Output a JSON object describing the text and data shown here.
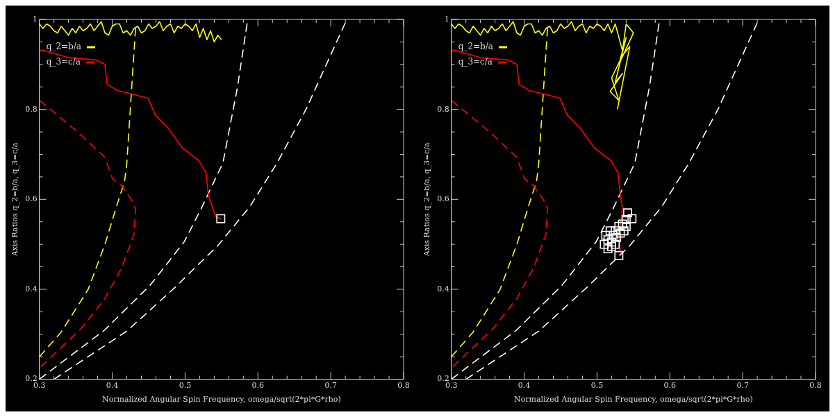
{
  "chart_data": [
    {
      "type": "line",
      "xlabel": "Normalized Angular Spin Frequency, omega/sqrt(2*pi*G*rho)",
      "ylabel": "Axis Ratios q_2=b/a, q_3=c/a",
      "xlim": [
        0.3,
        0.8
      ],
      "ylim": [
        0.2,
        1.0
      ],
      "xticks": [
        0.3,
        {
          "value": 0.32,
          "label": null
        },
        {
          "value": 0.34,
          "label": null
        },
        {
          "value": 0.36,
          "label": null
        },
        {
          "value": 0.38,
          "label": null
        },
        0.4,
        {
          "value": 0.42,
          "label": null
        },
        {
          "value": 0.44,
          "label": null
        },
        {
          "value": 0.46,
          "label": null
        },
        {
          "value": 0.48,
          "label": null
        },
        0.5,
        {
          "value": 0.52,
          "label": null
        },
        {
          "value": 0.54,
          "label": null
        },
        {
          "value": 0.56,
          "label": null
        },
        {
          "value": 0.58,
          "label": null
        },
        0.6,
        {
          "value": 0.62,
          "label": null
        },
        {
          "value": 0.64,
          "label": null
        },
        {
          "value": 0.66,
          "label": null
        },
        {
          "value": 0.68,
          "label": null
        },
        0.7,
        {
          "value": 0.72,
          "label": null
        },
        {
          "value": 0.74,
          "label": null
        },
        {
          "value": 0.76,
          "label": null
        },
        {
          "value": 0.78,
          "label": null
        },
        0.8
      ],
      "yticks": [
        0.2,
        {
          "value": 0.25,
          "label": null
        },
        {
          "value": 0.3,
          "label": null
        },
        {
          "value": 0.35,
          "label": null
        },
        0.4,
        {
          "value": 0.45,
          "label": null
        },
        {
          "value": 0.5,
          "label": null
        },
        {
          "value": 0.55,
          "label": null
        },
        0.6,
        {
          "value": 0.65,
          "label": null
        },
        {
          "value": 0.7,
          "label": null
        },
        {
          "value": 0.75,
          "label": null
        },
        0.8,
        {
          "value": 0.85,
          "label": null
        },
        {
          "value": 0.9,
          "label": null
        },
        {
          "value": 0.95,
          "label": null
        },
        1
      ],
      "grid": false,
      "legend": "top left",
      "series": [
        {
          "type": "line",
          "color": "#ffff00",
          "line_style": "dashed",
          "marker": "none",
          "x": [
            0.3,
            0.33,
            0.367,
            0.39,
            0.407,
            0.417,
            0.42,
            0.426,
            0.432
          ],
          "values": [
            0.25,
            0.305,
            0.4,
            0.5,
            0.59,
            0.64,
            0.68,
            0.83,
            0.98
          ]
        },
        {
          "type": "line",
          "color": "#ff0000",
          "line_style": "dashed",
          "marker": "none",
          "x": [
            0.3,
            0.357,
            0.39,
            0.4,
            0.413,
            0.426,
            0.429,
            0.432,
            0.43,
            0.413,
            0.39,
            0.357,
            0.3
          ],
          "values": [
            0.82,
            0.744,
            0.693,
            0.647,
            0.63,
            0.6,
            0.591,
            0.579,
            0.523,
            0.448,
            0.38,
            0.312,
            0.225
          ]
        },
        {
          "type": "line",
          "color": "#ffffff",
          "line_style": "dashed",
          "marker": "none",
          "x": [
            0.3,
            0.39,
            0.452,
            0.499,
            0.522,
            0.552,
            0.556,
            0.572,
            0.586
          ],
          "values": [
            0.2,
            0.31,
            0.409,
            0.506,
            0.579,
            0.681,
            0.715,
            0.85,
            1.0
          ]
        },
        {
          "type": "line",
          "color": "#ffffff",
          "line_style": "dashed",
          "marker": "none",
          "x": [
            0.32,
            0.42,
            0.486,
            0.546,
            0.589,
            0.626,
            0.666,
            0.722
          ],
          "values": [
            0.2,
            0.307,
            0.404,
            0.499,
            0.584,
            0.68,
            0.8,
            1.0
          ]
        },
        {
          "type": "line",
          "name": "q_2=b/a",
          "color": "#ffff00",
          "line_style": "solid",
          "marker": "none",
          "x": [
            0.3,
            0.305,
            0.31,
            0.315,
            0.32,
            0.325,
            0.33,
            0.335,
            0.34,
            0.345,
            0.35,
            0.355,
            0.36,
            0.365,
            0.37,
            0.375,
            0.38,
            0.385,
            0.39,
            0.395,
            0.4,
            0.405,
            0.41,
            0.415,
            0.42,
            0.425,
            0.43,
            0.435,
            0.44,
            0.445,
            0.45,
            0.455,
            0.46,
            0.465,
            0.47,
            0.475,
            0.48,
            0.485,
            0.49,
            0.495,
            0.5,
            0.505,
            0.51,
            0.515,
            0.52,
            0.525,
            0.53,
            0.535,
            0.54,
            0.545,
            0.55
          ],
          "values": [
            0.99,
            0.98,
            0.99,
            0.985,
            0.975,
            0.97,
            0.985,
            0.975,
            0.965,
            0.98,
            0.97,
            0.985,
            0.975,
            0.98,
            0.99,
            0.975,
            0.985,
            0.995,
            0.97,
            0.965,
            0.985,
            0.99,
            0.99,
            0.97,
            0.975,
            0.965,
            0.98,
            0.985,
            0.97,
            0.975,
            0.99,
            0.98,
            0.985,
            0.995,
            0.975,
            0.985,
            0.99,
            0.97,
            0.985,
            0.98,
            0.99,
            0.985,
            0.975,
            0.99,
            0.96,
            0.98,
            0.955,
            0.975,
            0.95,
            0.965,
            0.955
          ]
        },
        {
          "type": "line",
          "name": "q_3=c/a",
          "color": "#ff0000",
          "line_style": "solid",
          "marker": "none",
          "x": [
            0.3,
            0.303,
            0.34,
            0.377,
            0.39,
            0.393,
            0.407,
            0.43,
            0.449,
            0.459,
            0.476,
            0.496,
            0.519,
            0.529,
            0.532,
            0.542,
            0.549
          ],
          "values": [
            0.93,
            0.932,
            0.915,
            0.91,
            0.9,
            0.856,
            0.842,
            0.833,
            0.825,
            0.788,
            0.76,
            0.715,
            0.686,
            0.659,
            0.608,
            0.562,
            0.557
          ]
        },
        {
          "type": "scatter",
          "color": "#ffffff",
          "marker": "square",
          "x": [
            0.549
          ],
          "values": [
            0.557
          ]
        }
      ]
    },
    {
      "type": "line",
      "xlabel": "Normalized Angular Spin Frequency, omega/sqrt(2*pi*G*rho)",
      "ylabel": "Axis Ratios q_2=b/a, q_3=c/a",
      "xlim": [
        0.3,
        0.8
      ],
      "ylim": [
        0.2,
        1.0
      ],
      "xticks": [
        0.3,
        {
          "value": 0.32,
          "label": null
        },
        {
          "value": 0.34,
          "label": null
        },
        {
          "value": 0.36,
          "label": null
        },
        {
          "value": 0.38,
          "label": null
        },
        0.4,
        {
          "value": 0.42,
          "label": null
        },
        {
          "value": 0.44,
          "label": null
        },
        {
          "value": 0.46,
          "label": null
        },
        {
          "value": 0.48,
          "label": null
        },
        0.5,
        {
          "value": 0.52,
          "label": null
        },
        {
          "value": 0.54,
          "label": null
        },
        {
          "value": 0.56,
          "label": null
        },
        {
          "value": 0.58,
          "label": null
        },
        0.6,
        {
          "value": 0.62,
          "label": null
        },
        {
          "value": 0.64,
          "label": null
        },
        {
          "value": 0.66,
          "label": null
        },
        {
          "value": 0.68,
          "label": null
        },
        0.7,
        {
          "value": 0.72,
          "label": null
        },
        {
          "value": 0.74,
          "label": null
        },
        {
          "value": 0.76,
          "label": null
        },
        {
          "value": 0.78,
          "label": null
        },
        0.8
      ],
      "yticks": [
        0.2,
        {
          "value": 0.25,
          "label": null
        },
        {
          "value": 0.3,
          "label": null
        },
        {
          "value": 0.35,
          "label": null
        },
        0.4,
        {
          "value": 0.45,
          "label": null
        },
        {
          "value": 0.5,
          "label": null
        },
        {
          "value": 0.55,
          "label": null
        },
        0.6,
        {
          "value": 0.65,
          "label": null
        },
        {
          "value": 0.7,
          "label": null
        },
        {
          "value": 0.75,
          "label": null
        },
        0.8,
        {
          "value": 0.85,
          "label": null
        },
        {
          "value": 0.9,
          "label": null
        },
        {
          "value": 0.95,
          "label": null
        },
        1
      ],
      "grid": false,
      "legend": "top left",
      "series": [
        {
          "type": "line",
          "color": "#ffff00",
          "line_style": "dashed",
          "marker": "none",
          "x": [
            0.3,
            0.33,
            0.367,
            0.39,
            0.407,
            0.417,
            0.42,
            0.426,
            0.432
          ],
          "values": [
            0.25,
            0.305,
            0.4,
            0.5,
            0.59,
            0.64,
            0.68,
            0.83,
            0.98
          ]
        },
        {
          "type": "line",
          "color": "#ff0000",
          "line_style": "dashed",
          "marker": "none",
          "x": [
            0.3,
            0.357,
            0.39,
            0.4,
            0.413,
            0.426,
            0.429,
            0.432,
            0.43,
            0.413,
            0.39,
            0.357,
            0.3
          ],
          "values": [
            0.82,
            0.744,
            0.693,
            0.647,
            0.63,
            0.6,
            0.591,
            0.579,
            0.523,
            0.448,
            0.38,
            0.312,
            0.225
          ]
        },
        {
          "type": "line",
          "color": "#ffffff",
          "line_style": "dashed",
          "marker": "none",
          "x": [
            0.3,
            0.39,
            0.452,
            0.499,
            0.522,
            0.552,
            0.556,
            0.572,
            0.586
          ],
          "values": [
            0.2,
            0.31,
            0.409,
            0.506,
            0.579,
            0.681,
            0.715,
            0.85,
            1.0
          ]
        },
        {
          "type": "line",
          "color": "#ffffff",
          "line_style": "dashed",
          "marker": "none",
          "x": [
            0.32,
            0.42,
            0.486,
            0.546,
            0.589,
            0.626,
            0.666,
            0.722
          ],
          "values": [
            0.2,
            0.307,
            0.404,
            0.499,
            0.584,
            0.68,
            0.8,
            1.0
          ]
        },
        {
          "type": "line",
          "name": "q_2=b/a",
          "color": "#ffff00",
          "line_style": "solid",
          "marker": "none",
          "x": [
            0.3,
            0.305,
            0.31,
            0.315,
            0.32,
            0.325,
            0.33,
            0.335,
            0.34,
            0.345,
            0.35,
            0.355,
            0.36,
            0.365,
            0.37,
            0.375,
            0.38,
            0.385,
            0.39,
            0.395,
            0.4,
            0.405,
            0.41,
            0.415,
            0.42,
            0.425,
            0.43,
            0.435,
            0.44,
            0.445,
            0.45,
            0.455,
            0.46,
            0.465,
            0.47,
            0.475,
            0.48,
            0.485,
            0.49,
            0.495,
            0.5,
            0.505,
            0.51,
            0.515,
            0.52,
            0.525,
            0.535,
            0.54,
            0.55,
            0.53,
            0.54,
            0.525,
            0.535,
            0.518,
            0.53,
            0.52,
            0.535,
            0.545,
            0.528
          ],
          "values": [
            0.99,
            0.98,
            0.99,
            0.985,
            0.975,
            0.97,
            0.985,
            0.975,
            0.965,
            0.98,
            0.97,
            0.985,
            0.975,
            0.98,
            0.99,
            0.975,
            0.985,
            0.995,
            0.97,
            0.965,
            0.985,
            0.99,
            0.99,
            0.97,
            0.975,
            0.965,
            0.98,
            0.985,
            0.97,
            0.975,
            0.99,
            0.98,
            0.985,
            0.995,
            0.975,
            0.985,
            0.99,
            0.97,
            0.985,
            0.98,
            0.99,
            0.985,
            0.975,
            0.99,
            0.97,
            0.99,
            0.93,
            0.99,
            0.97,
            0.9,
            0.96,
            0.86,
            0.88,
            0.84,
            0.82,
            0.87,
            0.92,
            0.94,
            0.8
          ]
        },
        {
          "type": "line",
          "name": "q_3=c/a",
          "color": "#ff0000",
          "line_style": "solid",
          "marker": "none",
          "x": [
            0.3,
            0.303,
            0.34,
            0.377,
            0.39,
            0.393,
            0.407,
            0.43,
            0.449,
            0.459,
            0.476,
            0.496,
            0.519,
            0.529,
            0.532,
            0.535,
            0.53,
            0.532
          ],
          "values": [
            0.93,
            0.932,
            0.915,
            0.91,
            0.9,
            0.856,
            0.842,
            0.833,
            0.825,
            0.788,
            0.76,
            0.715,
            0.686,
            0.659,
            0.608,
            0.58,
            0.52,
            0.48
          ]
        },
        {
          "type": "scatter",
          "color": "#ffffff",
          "marker": "square",
          "x": [
            0.51,
            0.512,
            0.515,
            0.518,
            0.52,
            0.522,
            0.525,
            0.527,
            0.53,
            0.532,
            0.535,
            0.537,
            0.54,
            0.542,
            0.548,
            0.53,
            0.52,
            0.525,
            0.515,
            0.54
          ],
          "values": [
            0.5,
            0.52,
            0.51,
            0.53,
            0.505,
            0.52,
            0.53,
            0.515,
            0.54,
            0.525,
            0.545,
            0.53,
            0.555,
            0.57,
            0.557,
            0.475,
            0.495,
            0.5,
            0.49,
            0.54
          ]
        }
      ]
    }
  ]
}
